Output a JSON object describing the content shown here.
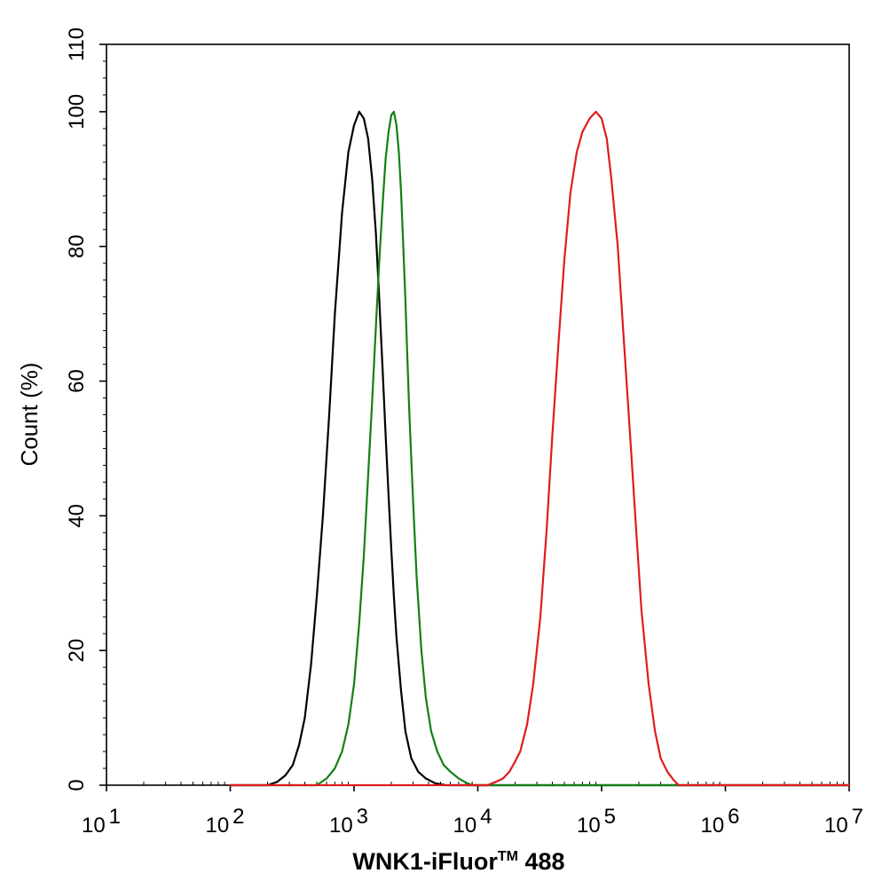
{
  "chart_data": {
    "type": "line",
    "title": "",
    "xlabel": "WNK1-iFluor",
    "xlabel_tm": "TM",
    "xlabel_suffix": " 488",
    "ylabel": "Count  (%)",
    "x_scale": "log",
    "xlim": [
      10,
      10000000
    ],
    "ylim": [
      0,
      110
    ],
    "x_ticks": [
      {
        "value": 10,
        "base": "10",
        "exp": "1"
      },
      {
        "value": 100,
        "base": "10",
        "exp": "2"
      },
      {
        "value": 1000,
        "base": "10",
        "exp": "3"
      },
      {
        "value": 10000,
        "base": "10",
        "exp": "4"
      },
      {
        "value": 100000,
        "base": "10",
        "exp": "5"
      },
      {
        "value": 1000000,
        "base": "10",
        "exp": "6"
      },
      {
        "value": 10000000,
        "base": "10",
        "exp": "7"
      }
    ],
    "y_ticks": [
      "0",
      "20",
      "40",
      "60",
      "80",
      "100",
      "110"
    ],
    "grid": false,
    "series": [
      {
        "color": "#000000",
        "points": [
          [
            100,
            0
          ],
          [
            200,
            0
          ],
          [
            240,
            0.5
          ],
          [
            280,
            1.5
          ],
          [
            320,
            3
          ],
          [
            360,
            6
          ],
          [
            400,
            10
          ],
          [
            450,
            18
          ],
          [
            500,
            28
          ],
          [
            560,
            40
          ],
          [
            630,
            55
          ],
          [
            700,
            70
          ],
          [
            800,
            85
          ],
          [
            900,
            94
          ],
          [
            1000,
            98
          ],
          [
            1100,
            100
          ],
          [
            1200,
            99
          ],
          [
            1300,
            96
          ],
          [
            1400,
            90
          ],
          [
            1500,
            82
          ],
          [
            1600,
            72
          ],
          [
            1700,
            62
          ],
          [
            1800,
            52
          ],
          [
            1900,
            43
          ],
          [
            2000,
            35
          ],
          [
            2100,
            28
          ],
          [
            2200,
            22
          ],
          [
            2400,
            14
          ],
          [
            2600,
            8
          ],
          [
            2900,
            4
          ],
          [
            3300,
            2
          ],
          [
            3800,
            1
          ],
          [
            4500,
            0.3
          ],
          [
            5500,
            0
          ],
          [
            10000000,
            0
          ]
        ],
        "values": []
      },
      {
        "color": "#138013",
        "points": [
          [
            100,
            0
          ],
          [
            500,
            0
          ],
          [
            600,
            1
          ],
          [
            700,
            2.5
          ],
          [
            800,
            5
          ],
          [
            900,
            9
          ],
          [
            1000,
            15
          ],
          [
            1100,
            24
          ],
          [
            1200,
            34
          ],
          [
            1300,
            46
          ],
          [
            1400,
            57
          ],
          [
            1500,
            68
          ],
          [
            1600,
            78
          ],
          [
            1700,
            86
          ],
          [
            1800,
            93
          ],
          [
            1900,
            97
          ],
          [
            2000,
            99.5
          ],
          [
            2100,
            100
          ],
          [
            2200,
            98
          ],
          [
            2300,
            94
          ],
          [
            2400,
            88
          ],
          [
            2500,
            80
          ],
          [
            2600,
            72
          ],
          [
            2700,
            63
          ],
          [
            2800,
            55
          ],
          [
            3000,
            42
          ],
          [
            3200,
            31
          ],
          [
            3500,
            20
          ],
          [
            3800,
            13
          ],
          [
            4200,
            8
          ],
          [
            4700,
            5
          ],
          [
            5300,
            3
          ],
          [
            6000,
            2
          ],
          [
            7000,
            1
          ],
          [
            8000,
            0.4
          ],
          [
            9000,
            0
          ],
          [
            10000000,
            0
          ]
        ],
        "values": []
      },
      {
        "color": "#e01b1b",
        "points": [
          [
            100,
            0
          ],
          [
            12000,
            0
          ],
          [
            14000,
            0.5
          ],
          [
            16000,
            1
          ],
          [
            18000,
            2
          ],
          [
            20000,
            3.5
          ],
          [
            22000,
            5
          ],
          [
            25000,
            9
          ],
          [
            28000,
            15
          ],
          [
            32000,
            25
          ],
          [
            36000,
            38
          ],
          [
            40000,
            52
          ],
          [
            45000,
            66
          ],
          [
            50000,
            78
          ],
          [
            56000,
            88
          ],
          [
            63000,
            94
          ],
          [
            70000,
            97
          ],
          [
            80000,
            99
          ],
          [
            90000,
            100
          ],
          [
            100000,
            99
          ],
          [
            110000,
            96
          ],
          [
            120000,
            90
          ],
          [
            135000,
            80
          ],
          [
            150000,
            67
          ],
          [
            170000,
            52
          ],
          [
            190000,
            38
          ],
          [
            210000,
            26
          ],
          [
            240000,
            15
          ],
          [
            270000,
            8
          ],
          [
            300000,
            4
          ],
          [
            340000,
            2
          ],
          [
            380000,
            0.8
          ],
          [
            420000,
            0
          ],
          [
            10000000,
            0
          ]
        ],
        "values": []
      }
    ]
  }
}
